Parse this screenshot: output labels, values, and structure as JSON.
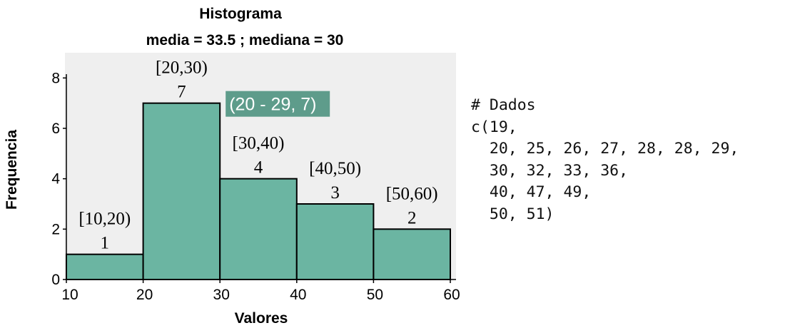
{
  "chart_data": {
    "type": "bar",
    "title": "Histograma",
    "subtitle": "media = 33.5 ; mediana = 30",
    "xlabel": "Valores",
    "ylabel": "Frequencia",
    "xlim": [
      10,
      60
    ],
    "ylim": [
      0,
      9
    ],
    "x_ticks": [
      10,
      20,
      30,
      40,
      50,
      60
    ],
    "y_ticks": [
      0,
      2,
      4,
      6,
      8
    ],
    "bars": [
      {
        "start": 10,
        "end": 20,
        "count": 1,
        "interval_label": "[10,20)",
        "count_label": "1"
      },
      {
        "start": 20,
        "end": 30,
        "count": 7,
        "interval_label": "[20,30)",
        "count_label": "7"
      },
      {
        "start": 30,
        "end": 40,
        "count": 4,
        "interval_label": "[30,40)",
        "count_label": "4"
      },
      {
        "start": 40,
        "end": 50,
        "count": 3,
        "interval_label": "[40,50)",
        "count_label": "3"
      },
      {
        "start": 50,
        "end": 60,
        "count": 2,
        "interval_label": "[50,60)",
        "count_label": "2"
      }
    ],
    "tooltip": {
      "text": "(20 - 29, 7)",
      "bar_index": 1
    },
    "grid": false,
    "colors": {
      "bar_fill": "#6bb5a2",
      "bar_stroke": "#000000",
      "plot_background": "#efefef",
      "tooltip_background": "#5e9c8b"
    }
  },
  "code_panel": {
    "lines": [
      "# Dados",
      "c(19,",
      "  20, 25, 26, 27, 28, 28, 29,",
      "  30, 32, 33, 36,",
      "  40, 47, 49,",
      "  50, 51)"
    ]
  }
}
